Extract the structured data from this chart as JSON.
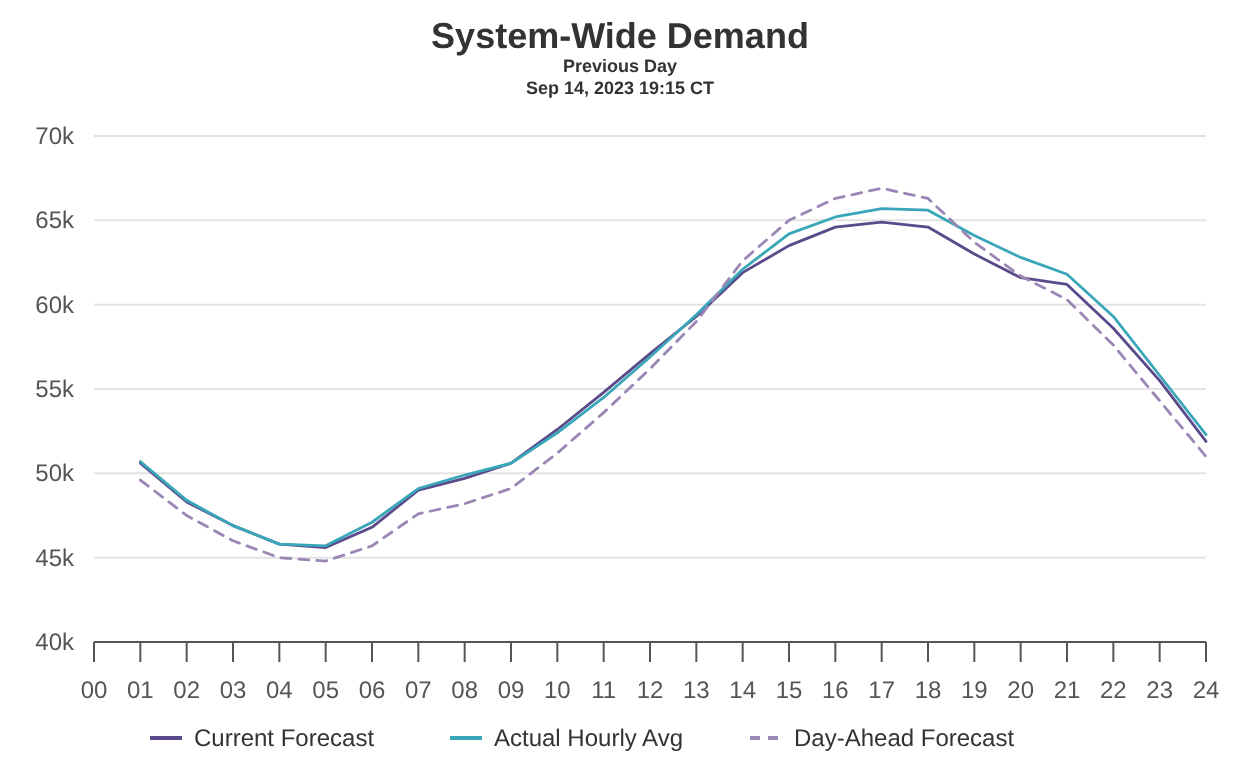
{
  "chart_data": {
    "type": "line",
    "title": "System-Wide Demand",
    "subtitle": "Previous Day",
    "annotations": [
      "Sep 14, 2023 19:15 CT"
    ],
    "x": [
      1,
      2,
      3,
      4,
      5,
      6,
      7,
      8,
      9,
      10,
      11,
      12,
      13,
      14,
      15,
      16,
      17,
      18,
      19,
      20,
      21,
      22,
      23,
      24
    ],
    "xlim": [
      0,
      24
    ],
    "xticks": [
      {
        "value": 0,
        "label": "00"
      },
      {
        "value": 1,
        "label": "01"
      },
      {
        "value": 2,
        "label": "02"
      },
      {
        "value": 3,
        "label": "03"
      },
      {
        "value": 4,
        "label": "04"
      },
      {
        "value": 5,
        "label": "05"
      },
      {
        "value": 6,
        "label": "06"
      },
      {
        "value": 7,
        "label": "07"
      },
      {
        "value": 8,
        "label": "08"
      },
      {
        "value": 9,
        "label": "09"
      },
      10,
      11,
      12,
      13,
      14,
      15,
      16,
      17,
      18,
      19,
      20,
      21,
      22,
      23,
      24
    ],
    "ylim": [
      40000,
      70000
    ],
    "yticks": [
      {
        "value": 40000,
        "label": "40k"
      },
      {
        "value": 45000,
        "label": "45k"
      },
      {
        "value": 50000,
        "label": "50k"
      },
      {
        "value": 55000,
        "label": "55k"
      },
      {
        "value": 60000,
        "label": "60k"
      },
      {
        "value": 65000,
        "label": "65k"
      },
      {
        "value": 70000,
        "label": "70k"
      }
    ],
    "grid": "y",
    "legend": "bottom",
    "marker": "none",
    "series": [
      {
        "name": "Current Forecast",
        "color": "#5b4a8a",
        "line_style": "solid",
        "values": [
          50600,
          48300,
          46900,
          45800,
          45600,
          46800,
          49000,
          49700,
          50600,
          52600,
          54800,
          57100,
          59300,
          61900,
          63500,
          64600,
          64900,
          64600,
          63000,
          61600,
          61200,
          58600,
          55500,
          51900
        ]
      },
      {
        "name": "Actual Hourly Avg",
        "color": "#3aa6b9",
        "line_style": "solid",
        "values": [
          50700,
          48400,
          46900,
          45800,
          45700,
          47100,
          49100,
          49900,
          50600,
          52400,
          54500,
          56900,
          59400,
          62100,
          64200,
          65200,
          65700,
          65600,
          64100,
          62800,
          61800,
          59300,
          55800,
          52300
        ]
      },
      {
        "name": "Day-Ahead Forecast",
        "color": "#9b86b5",
        "line_style": "dashed",
        "values": [
          49600,
          47500,
          46000,
          45000,
          44800,
          45700,
          47600,
          48200,
          49100,
          51200,
          53600,
          56200,
          59000,
          62600,
          65000,
          66300,
          66900,
          66300,
          63700,
          61700,
          60300,
          57600,
          54300,
          51000
        ]
      }
    ]
  }
}
